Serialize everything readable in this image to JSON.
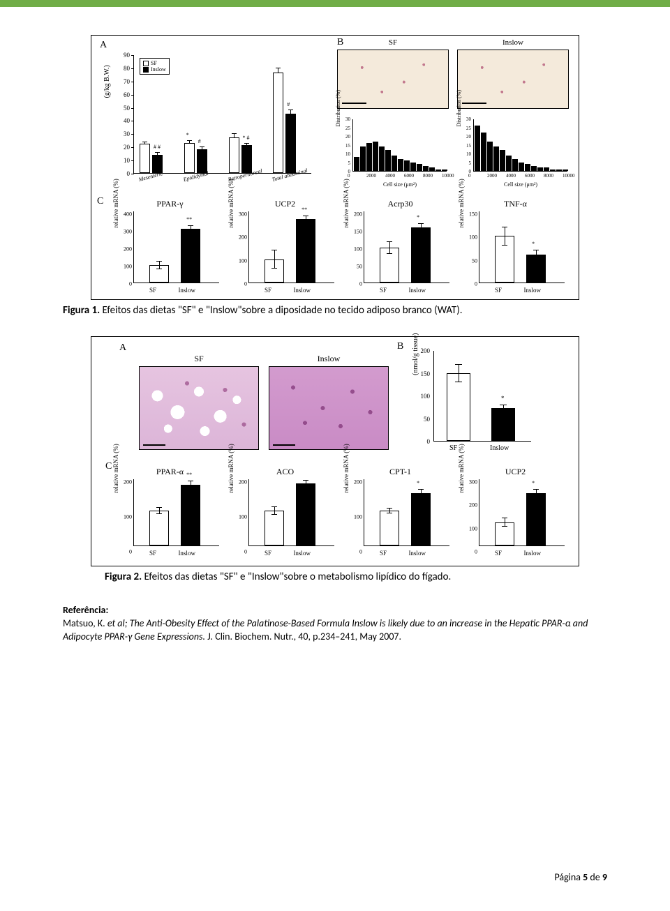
{
  "topbar_color": "#70ad47",
  "figure1": {
    "panel_labels": {
      "A": "A",
      "B": "B",
      "C": "C"
    },
    "A": {
      "y_axis_title": "(g/kg B.W.)",
      "y_ticks": [
        0,
        10,
        20,
        30,
        40,
        50,
        60,
        70,
        80,
        90
      ],
      "ymax": 90,
      "legend": {
        "sf": "SF",
        "inslow": "Inslow"
      },
      "categories": [
        "Mesenteric",
        "Epididymal",
        "Retroperitoneal",
        "Total abdominal"
      ],
      "sf_values": [
        22,
        23,
        27,
        76
      ],
      "inslow_values": [
        14,
        18,
        21,
        45
      ],
      "sf_err": [
        2,
        2,
        3,
        4
      ],
      "inslow_err": [
        2,
        2,
        2,
        3
      ],
      "sig_sf": [
        "",
        "*",
        "",
        ""
      ],
      "sig_inslow": [
        "# #",
        "#",
        "* #",
        "#"
      ]
    },
    "B": {
      "titles": {
        "sf": "SF",
        "inslow": "Inslow"
      },
      "hist_y_title": "Distribution (%)",
      "hist_x_title": "Cell size (μm²)",
      "hist_y_ticks": [
        0,
        5,
        10,
        15,
        20,
        25,
        30
      ],
      "hist_x_ticks": [
        0,
        2000,
        4000,
        6000,
        8000,
        10000
      ],
      "sf_hist": [
        8,
        14,
        16,
        17,
        14,
        12,
        9,
        7,
        6,
        5,
        4,
        3,
        2,
        1,
        1
      ],
      "inslow_hist": [
        26,
        22,
        17,
        14,
        12,
        9,
        7,
        5,
        4,
        3,
        2,
        2,
        1,
        1,
        1
      ]
    },
    "C": {
      "y_axis_title": "relative mRNA (%)",
      "x_labels": [
        "SF",
        "Inslow"
      ],
      "charts": [
        {
          "title": "PPAR-γ",
          "ymax": 400,
          "yticks": [
            0,
            100,
            200,
            300,
            400
          ],
          "sf": 100,
          "sf_err": 25,
          "inslow": 310,
          "inslow_err": 20,
          "sig": "**"
        },
        {
          "title": "UCP2",
          "ymax": 300,
          "yticks": [
            0,
            100,
            200,
            300
          ],
          "sf": 100,
          "sf_err": 40,
          "inslow": 272,
          "inslow_err": 15,
          "sig": "**"
        },
        {
          "title": "Acrp30",
          "ymax": 200,
          "yticks": [
            0,
            50,
            100,
            150,
            200
          ],
          "sf": 100,
          "sf_err": 18,
          "inslow": 158,
          "inslow_err": 12,
          "sig": "*"
        },
        {
          "title": "TNF-α",
          "ymax": 150,
          "yticks": [
            0,
            50,
            100,
            150
          ],
          "sf": 100,
          "sf_err": 20,
          "inslow": 60,
          "inslow_err": 10,
          "sig": "*"
        }
      ]
    }
  },
  "caption1": {
    "bold": "Figura 1.",
    "text": " Efeitos das dietas \"SF\" e \"Inslow\"sobre a diposidade no tecido adiposo branco (WAT)."
  },
  "figure2": {
    "panel_labels": {
      "A": "A",
      "B": "B",
      "C": "C"
    },
    "A": {
      "titles": {
        "sf": "SF",
        "inslow": "Inslow"
      }
    },
    "B": {
      "y_axis_title": "(nmol/g tissue)",
      "y_ticks": [
        0,
        50,
        100,
        150,
        200
      ],
      "ymax": 200,
      "x_labels": [
        "SF",
        "Inslow"
      ],
      "sf": 150,
      "sf_err": 20,
      "inslow": 72,
      "inslow_err": 8,
      "sig": "*"
    },
    "C": {
      "y_axis_title": "relative mRNA (%)",
      "x_labels": [
        "SF",
        "Inslow"
      ],
      "charts": [
        {
          "title": "PPAR-α",
          "ymax": 200,
          "yticks": [
            0,
            100,
            200
          ],
          "sf": 100,
          "sf_err": 10,
          "inslow": 175,
          "inslow_err": 12,
          "sig": "**"
        },
        {
          "title": "ACO",
          "ymax": 200,
          "yticks": [
            0,
            100,
            200
          ],
          "sf": 100,
          "sf_err": 12,
          "inslow": 178,
          "inslow_err": 10,
          "sig": ""
        },
        {
          "title": "CPT-1",
          "ymax": 200,
          "yticks": [
            0,
            100,
            200
          ],
          "sf": 100,
          "sf_err": 8,
          "inslow": 150,
          "inslow_err": 12,
          "sig": "*"
        },
        {
          "title": "UCP2",
          "ymax": 300,
          "yticks": [
            0,
            100,
            200,
            300
          ],
          "sf": 100,
          "sf_err": 20,
          "inslow": 225,
          "inslow_err": 18,
          "sig": "*"
        }
      ]
    }
  },
  "caption2": {
    "bold": "Figura 2.",
    "text": " Efeitos das dietas \"SF\" e \"Inslow\"sobre o metabolismo lipídico do fígado."
  },
  "reference": {
    "label": "Referência:",
    "author": "Matsuo, K. ",
    "italic": "et al; The Anti-Obesity Effect of the Palatinose-Based Formula Inslow is likely due to an increase in the Hepatic PPAR-α and Adipocyte PPAR-γ Gene Expressions.",
    "tail": " J. Clin. Biochem. Nutr., 40, p.234–241, May 2007."
  },
  "footer": {
    "prefix": "Página ",
    "page": "5",
    "mid": " de ",
    "total": "9"
  }
}
